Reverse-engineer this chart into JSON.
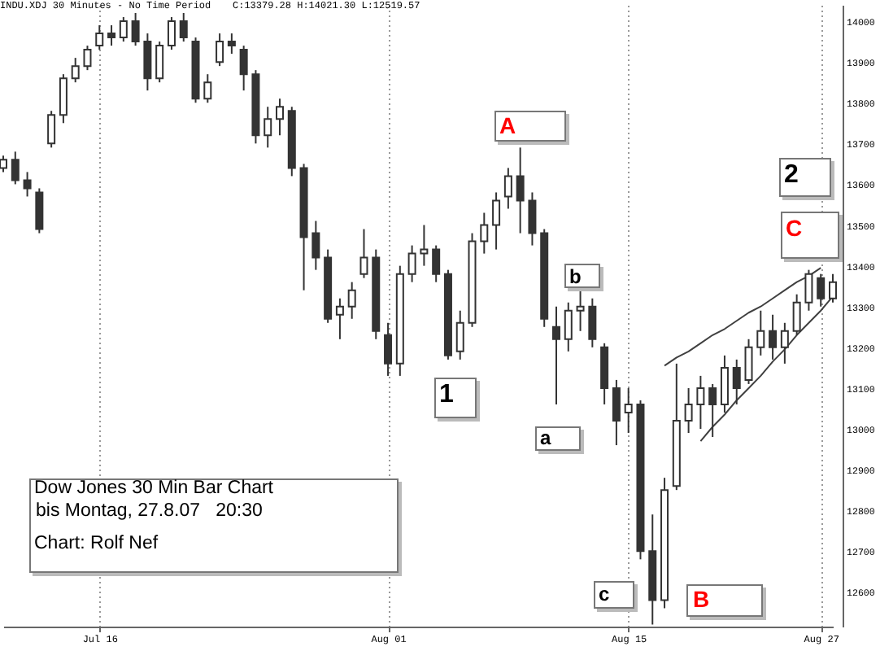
{
  "chart_data": {
    "type": "candlestick",
    "title": "INDU.XDJ 30 Minutes - No Time Period",
    "subtitle": "C:13379.28 H:14021.30 L:12519.57",
    "annotations": [
      "A",
      "b",
      "2",
      "C",
      "1",
      "a",
      "c",
      "B",
      "Dow Jones 30 Min Bar Chart",
      "bis Montag, 27.8.07   20:30",
      "Chart: Rolf Nef"
    ],
    "categories": [
      null,
      null,
      null,
      null,
      null,
      null,
      null,
      null,
      "Jul 16",
      null,
      null,
      null,
      null,
      null,
      null,
      null,
      null,
      null,
      null,
      null,
      null,
      null,
      null,
      null,
      null,
      null,
      null,
      null,
      null,
      null,
      null,
      null,
      "Aug 01",
      null,
      null,
      null,
      null,
      null,
      null,
      null,
      null,
      null,
      null,
      null,
      null,
      null,
      null,
      null,
      null,
      null,
      null,
      null,
      "Aug 15",
      null,
      null,
      null,
      null,
      null,
      null,
      null,
      null,
      null,
      null,
      null,
      null,
      null,
      null,
      null,
      "Aug 27",
      null
    ],
    "ohlc": [
      [
        13640,
        13670,
        13630,
        13660
      ],
      [
        13660,
        13680,
        13600,
        13610
      ],
      [
        13610,
        13630,
        13570,
        13590
      ],
      [
        13580,
        13590,
        13480,
        13490
      ],
      [
        13700,
        13780,
        13690,
        13770
      ],
      [
        13770,
        13870,
        13750,
        13860
      ],
      [
        13860,
        13910,
        13850,
        13890
      ],
      [
        13890,
        13940,
        13880,
        13930
      ],
      [
        13940,
        13990,
        13930,
        13970
      ],
      [
        13970,
        13990,
        13940,
        13960
      ],
      [
        13960,
        14010,
        13950,
        14000
      ],
      [
        14000,
        14020,
        13940,
        13950
      ],
      [
        13950,
        13970,
        13830,
        13860
      ],
      [
        13860,
        13950,
        13850,
        13940
      ],
      [
        13940,
        14010,
        13930,
        14000
      ],
      [
        14000,
        14020,
        13950,
        13960
      ],
      [
        13950,
        13960,
        13800,
        13810
      ],
      [
        13810,
        13870,
        13800,
        13850
      ],
      [
        13900,
        13970,
        13890,
        13950
      ],
      [
        13950,
        13970,
        13920,
        13940
      ],
      [
        13930,
        13940,
        13830,
        13870
      ],
      [
        13870,
        13880,
        13700,
        13720
      ],
      [
        13720,
        13790,
        13690,
        13760
      ],
      [
        13760,
        13810,
        13720,
        13790
      ],
      [
        13780,
        13790,
        13620,
        13640
      ],
      [
        13640,
        13650,
        13340,
        13470
      ],
      [
        13480,
        13510,
        13390,
        13420
      ],
      [
        13420,
        13440,
        13260,
        13270
      ],
      [
        13280,
        13320,
        13220,
        13300
      ],
      [
        13300,
        13360,
        13270,
        13340
      ],
      [
        13380,
        13490,
        13370,
        13420
      ],
      [
        13420,
        13440,
        13220,
        13240
      ],
      [
        13230,
        13260,
        13130,
        13160
      ],
      [
        13160,
        13400,
        13130,
        13380
      ],
      [
        13380,
        13450,
        13360,
        13430
      ],
      [
        13430,
        13500,
        13400,
        13440
      ],
      [
        13440,
        13450,
        13360,
        13380
      ],
      [
        13380,
        13390,
        13170,
        13180
      ],
      [
        13190,
        13290,
        13170,
        13260
      ],
      [
        13260,
        13480,
        13250,
        13460
      ],
      [
        13460,
        13530,
        13430,
        13500
      ],
      [
        13500,
        13580,
        13440,
        13560
      ],
      [
        13570,
        13640,
        13540,
        13620
      ],
      [
        13620,
        13690,
        13480,
        13560
      ],
      [
        13560,
        13580,
        13450,
        13480
      ],
      [
        13480,
        13490,
        13250,
        13270
      ],
      [
        13250,
        13300,
        13060,
        13220
      ],
      [
        13220,
        13310,
        13190,
        13290
      ],
      [
        13290,
        13340,
        13240,
        13300
      ],
      [
        13300,
        13320,
        13200,
        13220
      ],
      [
        13200,
        13210,
        13060,
        13100
      ],
      [
        13100,
        13120,
        12960,
        13020
      ],
      [
        13040,
        13100,
        12990,
        13060
      ],
      [
        13060,
        13070,
        12680,
        12700
      ],
      [
        12700,
        12790,
        12520,
        12580
      ],
      [
        12580,
        12880,
        12560,
        12850
      ],
      [
        12860,
        13160,
        12850,
        13020
      ],
      [
        13020,
        13100,
        12990,
        13060
      ],
      [
        13060,
        13130,
        13000,
        13100
      ],
      [
        13100,
        13110,
        12980,
        13060
      ],
      [
        13060,
        13180,
        13040,
        13150
      ],
      [
        13150,
        13170,
        13060,
        13100
      ],
      [
        13120,
        13220,
        13110,
        13200
      ],
      [
        13200,
        13290,
        13180,
        13240
      ],
      [
        13240,
        13280,
        13170,
        13200
      ],
      [
        13200,
        13260,
        13160,
        13240
      ],
      [
        13240,
        13330,
        13230,
        13310
      ],
      [
        13310,
        13390,
        13290,
        13380
      ],
      [
        13370,
        13380,
        13300,
        13320
      ],
      [
        13320,
        13380,
        13310,
        13360
      ]
    ],
    "color": "#333333",
    "series": [
      {
        "type": "line",
        "color": "#404040",
        "values": [
          null,
          null,
          null,
          null,
          null,
          null,
          null,
          null,
          null,
          null,
          null,
          null,
          null,
          null,
          null,
          null,
          null,
          null,
          null,
          null,
          null,
          null,
          null,
          null,
          null,
          null,
          null,
          null,
          null,
          null,
          null,
          null,
          null,
          null,
          null,
          null,
          null,
          null,
          null,
          null,
          null,
          null,
          null,
          null,
          null,
          null,
          null,
          null,
          null,
          null,
          null,
          null,
          null,
          null,
          null,
          13155,
          13175,
          13190,
          13210,
          13230,
          13245,
          13265,
          13285,
          13300,
          13320,
          13340,
          13360,
          13375,
          13395,
          null
        ]
      },
      {
        "type": "line",
        "color": "#404040",
        "values": [
          null,
          null,
          null,
          null,
          null,
          null,
          null,
          null,
          null,
          null,
          null,
          null,
          null,
          null,
          null,
          null,
          null,
          null,
          null,
          null,
          null,
          null,
          null,
          null,
          null,
          null,
          null,
          null,
          null,
          null,
          null,
          null,
          null,
          null,
          null,
          null,
          null,
          null,
          null,
          null,
          null,
          null,
          null,
          null,
          null,
          null,
          null,
          null,
          null,
          null,
          null,
          null,
          null,
          null,
          null,
          null,
          null,
          null,
          12970,
          13005,
          13035,
          13070,
          13100,
          13130,
          13165,
          13195,
          13230,
          13260,
          13290,
          13325
        ]
      }
    ],
    "ylim": [
      12515,
      14040
    ],
    "yticks": [
      12600,
      12700,
      12800,
      12900,
      13000,
      13100,
      13200,
      13300,
      13400,
      13500,
      13600,
      13700,
      13800,
      13900,
      14000
    ],
    "grid": "x"
  }
}
